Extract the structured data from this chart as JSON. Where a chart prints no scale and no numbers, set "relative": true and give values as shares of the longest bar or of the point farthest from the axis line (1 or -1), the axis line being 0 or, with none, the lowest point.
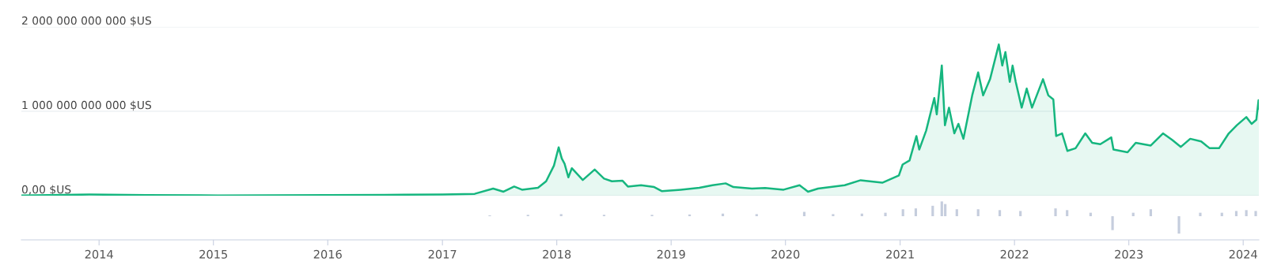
{
  "chart_data": [
    {
      "type": "area",
      "xlim": [
        "2013-04-28",
        "2024-02-20"
      ],
      "ylim": [
        0,
        2000000000000.0
      ],
      "yticks": [
        {
          "value": 0,
          "label": "0,00 $US"
        },
        {
          "value": 1000000000000.0,
          "label": "1 000 000 000 000 $US"
        },
        {
          "value": 2000000000000.0,
          "label": "2 000 000 000 000 $US"
        }
      ],
      "xticks": [
        "2014",
        "2015",
        "2016",
        "2017",
        "2018",
        "2019",
        "2020",
        "2021",
        "2022",
        "2023",
        "2024"
      ],
      "grid": "y",
      "tick_labels": "y",
      "series": [
        {
          "color": "#16b67f",
          "x": [
            "2013-04-28",
            "2013-12-01",
            "2014-06-01",
            "2015-01-15",
            "2016-01-01",
            "2016-07-01",
            "2017-01-01",
            "2017-04-14",
            "2017-06-12",
            "2017-07-15",
            "2017-08-18",
            "2017-09-12",
            "2017-11-02",
            "2017-11-28",
            "2017-12-23",
            "2018-01-07",
            "2018-01-17",
            "2018-01-26",
            "2018-02-07",
            "2018-02-18",
            "2018-03-25",
            "2018-05-02",
            "2018-06-01",
            "2018-06-26",
            "2018-07-30",
            "2018-08-16",
            "2018-09-27",
            "2018-11-08",
            "2018-12-03",
            "2019-02-01",
            "2019-04-01",
            "2019-05-13",
            "2019-06-24",
            "2019-07-19",
            "2019-09-16",
            "2019-10-28",
            "2019-12-26",
            "2020-02-15",
            "2020-03-13",
            "2020-04-14",
            "2020-07-08",
            "2020-08-28",
            "2020-11-05",
            "2020-12-28",
            "2021-01-09",
            "2021-01-31",
            "2021-02-22",
            "2021-03-03",
            "2021-03-25",
            "2021-04-20",
            "2021-04-28",
            "2021-05-14",
            "2021-05-24",
            "2021-06-06",
            "2021-06-23",
            "2021-07-06",
            "2021-07-22",
            "2021-08-19",
            "2021-09-07",
            "2021-09-23",
            "2021-10-15",
            "2021-11-12",
            "2021-11-23",
            "2021-12-03",
            "2021-12-17",
            "2021-12-26",
            "2022-01-05",
            "2022-01-24",
            "2022-02-09",
            "2022-02-26",
            "2022-04-02",
            "2022-04-19",
            "2022-05-05",
            "2022-05-14",
            "2022-06-02",
            "2022-06-19",
            "2022-07-15",
            "2022-08-15",
            "2022-09-06",
            "2022-10-02",
            "2022-11-06",
            "2022-11-13",
            "2022-12-28",
            "2023-01-23",
            "2023-03-12",
            "2023-04-20",
            "2023-05-20",
            "2023-06-16",
            "2023-07-16",
            "2023-08-20",
            "2023-09-16",
            "2023-10-16",
            "2023-11-16",
            "2023-12-12",
            "2024-01-11",
            "2024-01-28",
            "2024-02-12",
            "2024-02-19",
            "2024-02-20"
          ],
          "values": [
            1500000000.0,
            13000000000.0,
            8000000000.0,
            3000000000.0,
            6000000000.0,
            10000000000.0,
            15000000000.0,
            22000000000.0,
            84000000000.0,
            47000000000.0,
            108000000000.0,
            71000000000.0,
            93000000000.0,
            170000000000.0,
            356000000000.0,
            573000000000.0,
            440000000000.0,
            378000000000.0,
            217000000000.0,
            325000000000.0,
            186000000000.0,
            310000000000.0,
            202000000000.0,
            171000000000.0,
            177000000000.0,
            108000000000.0,
            124000000000.0,
            102000000000.0,
            53000000000.0,
            71000000000.0,
            93000000000.0,
            124000000000.0,
            146000000000.0,
            102000000000.0,
            84000000000.0,
            90000000000.0,
            71000000000.0,
            124000000000.0,
            47000000000.0,
            84000000000.0,
            124000000000.0,
            183000000000.0,
            154000000000.0,
            240000000000.0,
            369000000000.0,
            417000000000.0,
            706000000000.0,
            546000000000.0,
            770000000000.0,
            1156000000000.0,
            963000000000.0,
            1541000000000.0,
            835000000000.0,
            1043000000000.0,
            738000000000.0,
            851000000000.0,
            674000000000.0,
            1188000000000.0,
            1460000000000.0,
            1188000000000.0,
            1380000000000.0,
            1791000000000.0,
            1541000000000.0,
            1701000000000.0,
            1348000000000.0,
            1541000000000.0,
            1348000000000.0,
            1043000000000.0,
            1268000000000.0,
            1043000000000.0,
            1380000000000.0,
            1188000000000.0,
            1140000000000.0,
            706000000000.0,
            738000000000.0,
            530000000000.0,
            562000000000.0,
            738000000000.0,
            626000000000.0,
            610000000000.0,
            690000000000.0,
            546000000000.0,
            514000000000.0,
            626000000000.0,
            594000000000.0,
            738000000000.0,
            658000000000.0,
            578000000000.0,
            674000000000.0,
            642000000000.0,
            562000000000.0,
            562000000000.0,
            738000000000.0,
            835000000000.0,
            931000000000.0,
            851000000000.0,
            899000000000.0,
            1130000000000.0,
            1027000000000.0
          ]
        }
      ]
    },
    {
      "type": "bar",
      "relative": true,
      "xlim": [
        "2013-04-28",
        "2024-02-20"
      ],
      "xticks": [
        "2014",
        "2015",
        "2016",
        "2017",
        "2018",
        "2019",
        "2020",
        "2021",
        "2022",
        "2023",
        "2024"
      ],
      "tick_labels": "x",
      "series": [
        {
          "color": "#c5cddd",
          "x": [
            "2017-06-01",
            "2017-10-01",
            "2018-01-15",
            "2018-06-01",
            "2018-11-01",
            "2019-03-01",
            "2019-06-15",
            "2019-10-01",
            "2020-03-01",
            "2020-06-01",
            "2020-09-01",
            "2020-11-15",
            "2021-01-10",
            "2021-02-20",
            "2021-04-15",
            "2021-05-14",
            "2021-05-25",
            "2021-07-01",
            "2021-09-07",
            "2021-11-15",
            "2022-01-20",
            "2022-05-12",
            "2022-06-18",
            "2022-09-01",
            "2022-11-10",
            "2023-01-15",
            "2023-03-12",
            "2023-06-10",
            "2023-08-17",
            "2023-10-25",
            "2023-12-10",
            "2024-01-11",
            "2024-02-10"
          ],
          "values": [
            0.05,
            0.08,
            0.12,
            0.08,
            0.08,
            0.1,
            0.15,
            0.12,
            0.25,
            0.12,
            0.15,
            0.2,
            0.4,
            0.45,
            0.6,
            0.85,
            0.7,
            0.4,
            0.4,
            0.35,
            0.3,
            0.45,
            0.35,
            0.2,
            -0.8,
            0.2,
            0.4,
            -1,
            0.2,
            0.2,
            0.3,
            0.35,
            0.3
          ]
        }
      ]
    }
  ]
}
